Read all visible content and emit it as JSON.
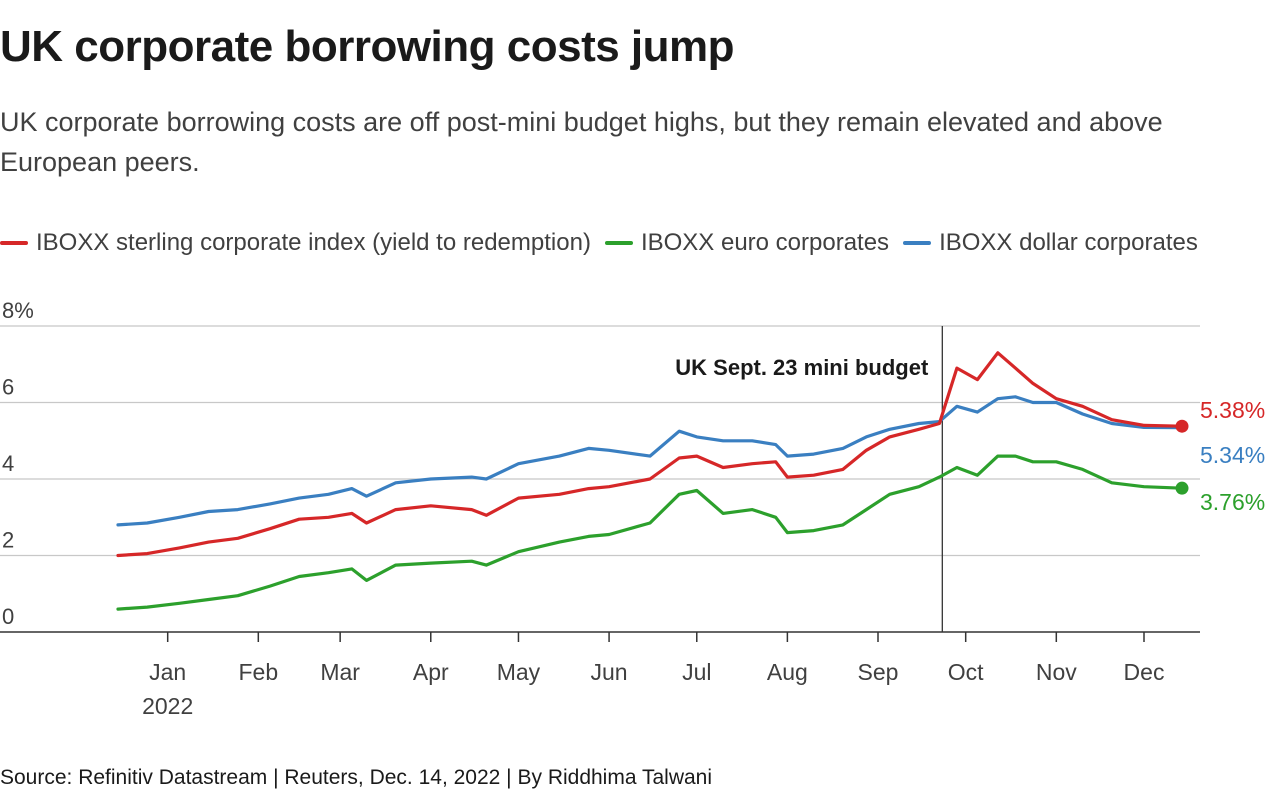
{
  "header": {
    "title": "UK corporate borrowing costs jump",
    "subtitle": "UK corporate borrowing costs are off post-mini budget highs, but they remain elevated and above European peers."
  },
  "legend": [
    {
      "label": "IBOXX sterling corporate index (yield to redemption)",
      "color": "#d62728"
    },
    {
      "label": "IBOXX euro corporates",
      "color": "#2ca02c"
    },
    {
      "label": "IBOXX dollar corporates",
      "color": "#3a7fc1"
    }
  ],
  "source": "Source: Refinitiv Datastream | Reuters, Dec. 14, 2022 | By Riddhima Talwani",
  "chart_data": {
    "type": "line",
    "x_range": [
      "2021-12-15",
      "2022-12-14"
    ],
    "ylim": [
      0,
      8
    ],
    "y_ticks": [
      {
        "value": 0,
        "label": "0"
      },
      {
        "value": 2,
        "label": "2"
      },
      {
        "value": 4,
        "label": "4"
      },
      {
        "value": 6,
        "label": "6"
      },
      {
        "value": 8,
        "label": "8%"
      }
    ],
    "x_ticks": [
      {
        "date": "2022-01-01",
        "label": "Jan",
        "sublabel": "2022"
      },
      {
        "date": "2022-02-01",
        "label": "Feb"
      },
      {
        "date": "2022-03-01",
        "label": "Mar"
      },
      {
        "date": "2022-04-01",
        "label": "Apr"
      },
      {
        "date": "2022-05-01",
        "label": "May"
      },
      {
        "date": "2022-06-01",
        "label": "Jun"
      },
      {
        "date": "2022-07-01",
        "label": "Jul"
      },
      {
        "date": "2022-08-01",
        "label": "Aug"
      },
      {
        "date": "2022-09-01",
        "label": "Sep"
      },
      {
        "date": "2022-10-01",
        "label": "Oct"
      },
      {
        "date": "2022-11-01",
        "label": "Nov"
      },
      {
        "date": "2022-12-01",
        "label": "Dec"
      }
    ],
    "annotation": {
      "date": "2022-09-23",
      "label": "UK Sept. 23 mini budget"
    },
    "series": [
      {
        "name": "IBOXX sterling corporate index (yield to redemption)",
        "color": "#d62728",
        "end_label": "5.38%",
        "points": [
          [
            "2021-12-15",
            2.0
          ],
          [
            "2021-12-25",
            2.05
          ],
          [
            "2022-01-05",
            2.2
          ],
          [
            "2022-01-15",
            2.35
          ],
          [
            "2022-01-25",
            2.45
          ],
          [
            "2022-02-05",
            2.7
          ],
          [
            "2022-02-15",
            2.95
          ],
          [
            "2022-02-25",
            3.0
          ],
          [
            "2022-03-05",
            3.1
          ],
          [
            "2022-03-10",
            2.85
          ],
          [
            "2022-03-20",
            3.2
          ],
          [
            "2022-04-01",
            3.3
          ],
          [
            "2022-04-15",
            3.2
          ],
          [
            "2022-04-20",
            3.05
          ],
          [
            "2022-05-01",
            3.5
          ],
          [
            "2022-05-15",
            3.6
          ],
          [
            "2022-05-25",
            3.75
          ],
          [
            "2022-06-01",
            3.8
          ],
          [
            "2022-06-15",
            4.0
          ],
          [
            "2022-06-25",
            4.55
          ],
          [
            "2022-07-01",
            4.6
          ],
          [
            "2022-07-10",
            4.3
          ],
          [
            "2022-07-20",
            4.4
          ],
          [
            "2022-07-28",
            4.45
          ],
          [
            "2022-08-01",
            4.05
          ],
          [
            "2022-08-10",
            4.1
          ],
          [
            "2022-08-20",
            4.25
          ],
          [
            "2022-08-28",
            4.75
          ],
          [
            "2022-09-05",
            5.1
          ],
          [
            "2022-09-15",
            5.3
          ],
          [
            "2022-09-22",
            5.45
          ],
          [
            "2022-09-28",
            6.9
          ],
          [
            "2022-10-05",
            6.6
          ],
          [
            "2022-10-12",
            7.3
          ],
          [
            "2022-10-18",
            6.9
          ],
          [
            "2022-10-24",
            6.5
          ],
          [
            "2022-11-01",
            6.1
          ],
          [
            "2022-11-10",
            5.9
          ],
          [
            "2022-11-20",
            5.55
          ],
          [
            "2022-12-01",
            5.4
          ],
          [
            "2022-12-14",
            5.38
          ]
        ]
      },
      {
        "name": "IBOXX euro corporates",
        "color": "#2ca02c",
        "end_label": "3.76%",
        "points": [
          [
            "2021-12-15",
            0.6
          ],
          [
            "2021-12-25",
            0.65
          ],
          [
            "2022-01-05",
            0.75
          ],
          [
            "2022-01-15",
            0.85
          ],
          [
            "2022-01-25",
            0.95
          ],
          [
            "2022-02-05",
            1.2
          ],
          [
            "2022-02-15",
            1.45
          ],
          [
            "2022-02-25",
            1.55
          ],
          [
            "2022-03-05",
            1.65
          ],
          [
            "2022-03-10",
            1.35
          ],
          [
            "2022-03-20",
            1.75
          ],
          [
            "2022-04-01",
            1.8
          ],
          [
            "2022-04-15",
            1.85
          ],
          [
            "2022-04-20",
            1.75
          ],
          [
            "2022-05-01",
            2.1
          ],
          [
            "2022-05-15",
            2.35
          ],
          [
            "2022-05-25",
            2.5
          ],
          [
            "2022-06-01",
            2.55
          ],
          [
            "2022-06-15",
            2.85
          ],
          [
            "2022-06-25",
            3.6
          ],
          [
            "2022-07-01",
            3.7
          ],
          [
            "2022-07-10",
            3.1
          ],
          [
            "2022-07-20",
            3.2
          ],
          [
            "2022-07-28",
            3.0
          ],
          [
            "2022-08-01",
            2.6
          ],
          [
            "2022-08-10",
            2.65
          ],
          [
            "2022-08-20",
            2.8
          ],
          [
            "2022-08-28",
            3.2
          ],
          [
            "2022-09-05",
            3.6
          ],
          [
            "2022-09-15",
            3.8
          ],
          [
            "2022-09-22",
            4.05
          ],
          [
            "2022-09-28",
            4.3
          ],
          [
            "2022-10-05",
            4.1
          ],
          [
            "2022-10-12",
            4.6
          ],
          [
            "2022-10-18",
            4.6
          ],
          [
            "2022-10-24",
            4.45
          ],
          [
            "2022-11-01",
            4.45
          ],
          [
            "2022-11-10",
            4.25
          ],
          [
            "2022-11-20",
            3.9
          ],
          [
            "2022-12-01",
            3.8
          ],
          [
            "2022-12-14",
            3.76
          ]
        ]
      },
      {
        "name": "IBOXX dollar corporates",
        "color": "#3a7fc1",
        "end_label": "5.34%",
        "points": [
          [
            "2021-12-15",
            2.8
          ],
          [
            "2021-12-25",
            2.85
          ],
          [
            "2022-01-05",
            3.0
          ],
          [
            "2022-01-15",
            3.15
          ],
          [
            "2022-01-25",
            3.2
          ],
          [
            "2022-02-05",
            3.35
          ],
          [
            "2022-02-15",
            3.5
          ],
          [
            "2022-02-25",
            3.6
          ],
          [
            "2022-03-05",
            3.75
          ],
          [
            "2022-03-10",
            3.55
          ],
          [
            "2022-03-20",
            3.9
          ],
          [
            "2022-04-01",
            4.0
          ],
          [
            "2022-04-15",
            4.05
          ],
          [
            "2022-04-20",
            4.0
          ],
          [
            "2022-05-01",
            4.4
          ],
          [
            "2022-05-15",
            4.6
          ],
          [
            "2022-05-25",
            4.8
          ],
          [
            "2022-06-01",
            4.75
          ],
          [
            "2022-06-15",
            4.6
          ],
          [
            "2022-06-25",
            5.25
          ],
          [
            "2022-07-01",
            5.1
          ],
          [
            "2022-07-10",
            5.0
          ],
          [
            "2022-07-20",
            5.0
          ],
          [
            "2022-07-28",
            4.9
          ],
          [
            "2022-08-01",
            4.6
          ],
          [
            "2022-08-10",
            4.65
          ],
          [
            "2022-08-20",
            4.8
          ],
          [
            "2022-08-28",
            5.1
          ],
          [
            "2022-09-05",
            5.3
          ],
          [
            "2022-09-15",
            5.45
          ],
          [
            "2022-09-22",
            5.5
          ],
          [
            "2022-09-28",
            5.9
          ],
          [
            "2022-10-05",
            5.75
          ],
          [
            "2022-10-12",
            6.1
          ],
          [
            "2022-10-18",
            6.15
          ],
          [
            "2022-10-24",
            6.0
          ],
          [
            "2022-11-01",
            6.0
          ],
          [
            "2022-11-10",
            5.7
          ],
          [
            "2022-11-20",
            5.45
          ],
          [
            "2022-12-01",
            5.35
          ],
          [
            "2022-12-14",
            5.34
          ]
        ]
      }
    ]
  }
}
